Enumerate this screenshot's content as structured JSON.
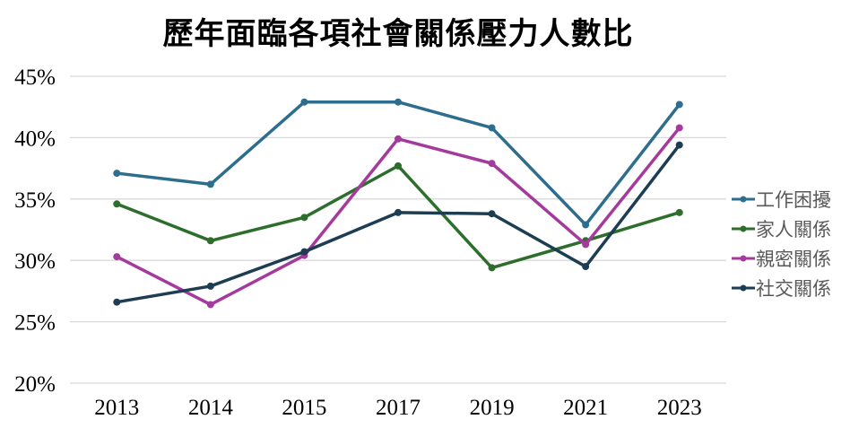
{
  "chart_data": {
    "type": "line",
    "title": "歷年面臨各項社會關係壓力人數比",
    "categories": [
      "2013",
      "2014",
      "2015",
      "2017",
      "2019",
      "2021",
      "2023"
    ],
    "series": [
      {
        "name": "工作困擾",
        "color": "#2d6d8e",
        "values": [
          37.1,
          36.2,
          42.9,
          42.9,
          40.8,
          32.9,
          42.7
        ]
      },
      {
        "name": "家人關係",
        "color": "#2d6e2d",
        "values": [
          34.6,
          31.6,
          33.5,
          37.7,
          29.4,
          31.6,
          33.9
        ]
      },
      {
        "name": "親密關係",
        "color": "#a53a9d",
        "values": [
          30.3,
          26.4,
          30.4,
          39.9,
          37.9,
          31.3,
          40.8
        ]
      },
      {
        "name": "社交關係",
        "color": "#1c3d52",
        "values": [
          26.6,
          27.9,
          30.7,
          33.9,
          33.8,
          29.5,
          39.4
        ]
      }
    ],
    "ylim": [
      20,
      45
    ],
    "ytick_step": 5,
    "ytick_labels": [
      "20%",
      "25%",
      "30%",
      "35%",
      "40%",
      "45%"
    ],
    "xlabel": "",
    "ylabel": "",
    "grid": "horizontal",
    "legend_position": "right"
  },
  "colors": {
    "background": "#ffffff",
    "gridline": "#d9d9d9",
    "title_text": "#000000",
    "axis_text": "#000000",
    "legend_text": "#595959"
  }
}
